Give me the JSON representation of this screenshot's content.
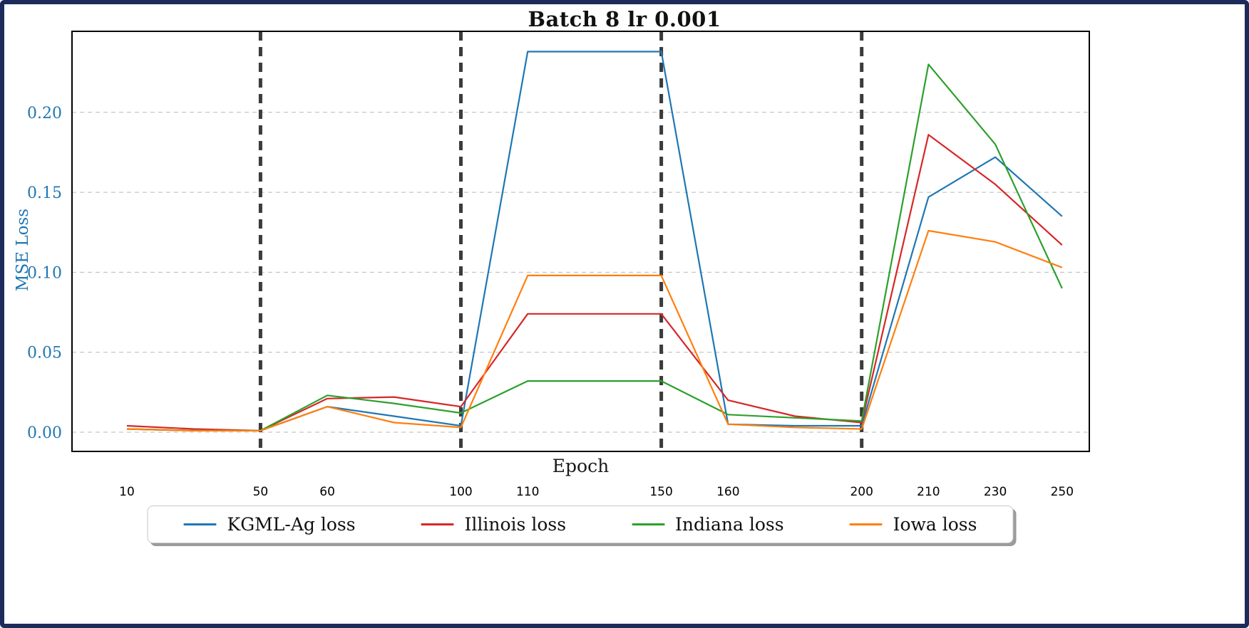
{
  "chart_data": {
    "type": "line",
    "title": "Batch 8 lr 0.001",
    "xlabel": "Epoch",
    "ylabel": "MSE Loss",
    "axis_color": "#1f77b4",
    "grid": "horizontal-dashed",
    "legend_position": "bottom",
    "frame_color": "#1d2b5a",
    "phase_line_color": "#3b3b3b",
    "x": [
      10,
      30,
      50,
      60,
      80,
      100,
      110,
      130,
      150,
      160,
      180,
      200,
      210,
      230,
      250
    ],
    "x_tick_labels": [
      "10",
      "50",
      "60",
      "100",
      "110",
      "150",
      "160",
      "200",
      "210",
      "230",
      "250"
    ],
    "y_tick_labels": [
      "0.00",
      "0.05",
      "0.10",
      "0.15",
      "0.20"
    ],
    "ylim": [
      -0.0125,
      0.2505
    ],
    "phase_boundaries": [
      50,
      100,
      150,
      200
    ],
    "series": [
      {
        "name": "KGML-Ag loss",
        "color": "#1f77b4",
        "values": [
          0.002,
          0.001,
          0.001,
          0.016,
          0.01,
          0.004,
          0.238,
          0.238,
          0.238,
          0.005,
          0.004,
          0.004,
          0.147,
          0.172,
          0.135
        ]
      },
      {
        "name": "Illinois loss",
        "color": "#d62728",
        "values": [
          0.004,
          0.002,
          0.001,
          0.021,
          0.022,
          0.016,
          0.074,
          0.074,
          0.074,
          0.02,
          0.01,
          0.006,
          0.186,
          0.155,
          0.117
        ]
      },
      {
        "name": "Indiana loss",
        "color": "#2ca02c",
        "values": [
          0.002,
          0.001,
          0.001,
          0.023,
          0.018,
          0.012,
          0.032,
          0.032,
          0.032,
          0.011,
          0.009,
          0.007,
          0.23,
          0.18,
          0.09
        ]
      },
      {
        "name": "Iowa loss",
        "color": "#ff7f0e",
        "values": [
          0.002,
          0.001,
          0.001,
          0.016,
          0.006,
          0.003,
          0.098,
          0.098,
          0.098,
          0.005,
          0.003,
          0.002,
          0.126,
          0.119,
          0.103
        ]
      }
    ]
  }
}
